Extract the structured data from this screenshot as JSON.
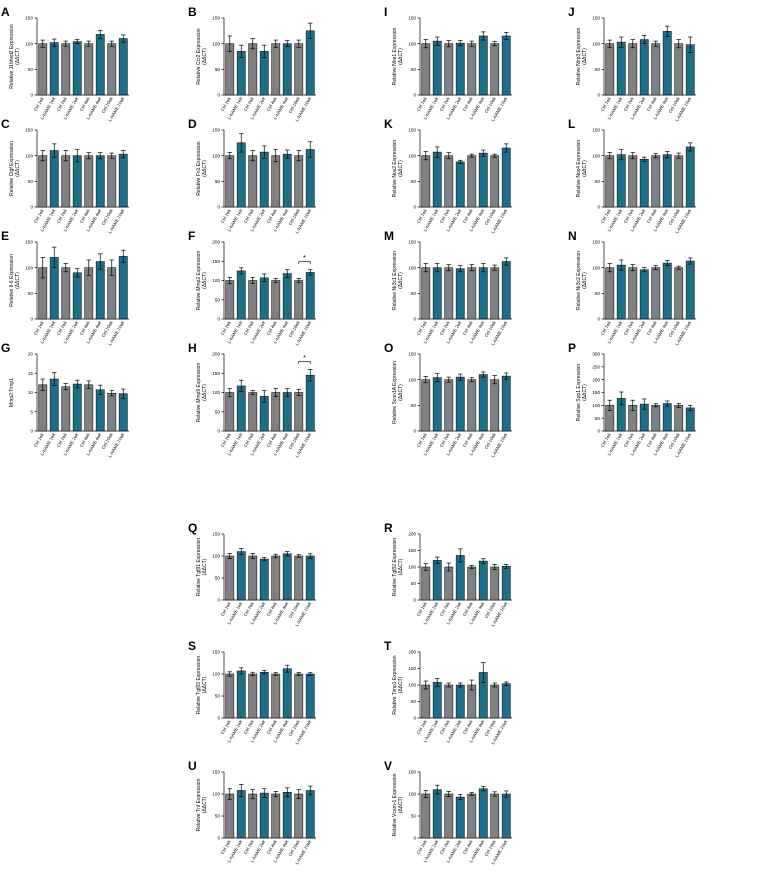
{
  "colors": {
    "ctrl": "#808080",
    "lname": "#1b6f8a",
    "axis": "#000000"
  },
  "categories": [
    "Ctrl 1wk",
    "L-NAME 1wk",
    "Ctrl 2wk",
    "L-NAME 2wk",
    "Ctrl 4wk",
    "L-NAME 4wk",
    "Ctrl 10wk",
    "L-NAME 10wk"
  ],
  "chart_data": [
    {
      "panel": "A",
      "type": "bar",
      "ylabel": "Relative 11bhsd2 Expression",
      "ylabel2": "(ΔΔCT)",
      "ylim": [
        0,
        150
      ],
      "yticks": [
        0,
        50,
        100,
        150
      ],
      "values": [
        100,
        102,
        100,
        104,
        100,
        118,
        100,
        110
      ],
      "errors": [
        7,
        7,
        5,
        4,
        5,
        8,
        5,
        7
      ],
      "sig": []
    },
    {
      "panel": "B",
      "type": "bar",
      "ylabel": "Relative Ccr2 Expression",
      "ylabel2": "(ΔΔCT)",
      "ylim": [
        0,
        150
      ],
      "yticks": [
        0,
        50,
        100,
        150
      ],
      "values": [
        100,
        85,
        100,
        85,
        100,
        100,
        100,
        125
      ],
      "errors": [
        15,
        12,
        10,
        12,
        7,
        6,
        7,
        15
      ],
      "sig": []
    },
    {
      "panel": "C",
      "type": "bar",
      "ylabel": "Relative Ctgf Expression",
      "ylabel2": "(ΔΔCT)",
      "ylim": [
        0,
        150
      ],
      "yticks": [
        0,
        50,
        100,
        150
      ],
      "values": [
        100,
        110,
        100,
        100,
        100,
        100,
        100,
        103
      ],
      "errors": [
        10,
        13,
        10,
        12,
        6,
        6,
        5,
        7
      ],
      "sig": []
    },
    {
      "panel": "D",
      "type": "bar",
      "ylabel": "Relative Fn1 Expression",
      "ylabel2": "(ΔΔCT)",
      "ylim": [
        0,
        150
      ],
      "yticks": [
        0,
        50,
        100,
        150
      ],
      "values": [
        100,
        125,
        100,
        107,
        100,
        103,
        100,
        112
      ],
      "errors": [
        6,
        18,
        10,
        12,
        12,
        8,
        10,
        15
      ],
      "sig": []
    },
    {
      "panel": "E",
      "type": "bar",
      "ylabel": "Relative Il-6 Expression",
      "ylabel2": "(ΔΔCT)",
      "ylim": [
        0,
        150
      ],
      "yticks": [
        0,
        50,
        100,
        150
      ],
      "values": [
        100,
        120,
        100,
        90,
        100,
        112,
        100,
        122
      ],
      "errors": [
        20,
        20,
        8,
        8,
        15,
        15,
        15,
        12
      ],
      "sig": []
    },
    {
      "panel": "F",
      "type": "bar",
      "ylabel": "Relative Mmp2 Expression",
      "ylabel2": "(ΔΔCT)",
      "ylim": [
        0,
        200
      ],
      "yticks": [
        0,
        50,
        100,
        150,
        200
      ],
      "values": [
        100,
        125,
        100,
        107,
        100,
        118,
        100,
        121
      ],
      "errors": [
        8,
        8,
        8,
        10,
        5,
        10,
        5,
        7
      ],
      "sig": [
        {
          "from": 6,
          "to": 7,
          "label": "*"
        }
      ]
    },
    {
      "panel": "G",
      "type": "bar",
      "ylabel": "Mmp2:Timp1",
      "ylabel2": "",
      "ylim": [
        0,
        20
      ],
      "yticks": [
        0,
        5,
        10,
        15,
        20
      ],
      "values": [
        12,
        13.5,
        11.5,
        12.2,
        12,
        10.7,
        9.8,
        9.7
      ],
      "errors": [
        1.5,
        1.7,
        0.8,
        1,
        1,
        1.2,
        0.7,
        1.2
      ],
      "sig": []
    },
    {
      "panel": "H",
      "type": "bar",
      "ylabel": "Relative Mmp9 Expression",
      "ylabel2": "(ΔΔCT)",
      "ylim": [
        0,
        200
      ],
      "yticks": [
        0,
        50,
        100,
        150,
        200
      ],
      "values": [
        100,
        117,
        100,
        90,
        100,
        100,
        100,
        145
      ],
      "errors": [
        10,
        15,
        5,
        15,
        10,
        10,
        8,
        15
      ],
      "sig": [
        {
          "from": 6,
          "to": 7,
          "label": "*"
        }
      ]
    },
    {
      "panel": "I",
      "type": "bar",
      "ylabel": "Relative Nhe1 Expression",
      "ylabel2": "(ΔΔCT)",
      "ylim": [
        0,
        150
      ],
      "yticks": [
        0,
        50,
        100,
        150
      ],
      "values": [
        100,
        105,
        100,
        101,
        100,
        115,
        100,
        115
      ],
      "errors": [
        8,
        8,
        6,
        5,
        5,
        8,
        4,
        7
      ],
      "sig": []
    },
    {
      "panel": "J",
      "type": "bar",
      "ylabel": "Relative Nlrp3 Expression",
      "ylabel2": "(ΔΔCT)",
      "ylim": [
        0,
        150
      ],
      "yticks": [
        0,
        50,
        100,
        150
      ],
      "values": [
        100,
        103,
        100,
        108,
        100,
        124,
        100,
        98
      ],
      "errors": [
        7,
        10,
        8,
        8,
        5,
        10,
        8,
        15
      ],
      "sig": []
    },
    {
      "panel": "K",
      "type": "bar",
      "ylabel": "Relative Nox2 Expression",
      "ylabel2": "(ΔΔCT)",
      "ylim": [
        0,
        150
      ],
      "yticks": [
        0,
        50,
        100,
        150
      ],
      "values": [
        100,
        107,
        100,
        88,
        100,
        105,
        100,
        115
      ],
      "errors": [
        8,
        10,
        6,
        3,
        3,
        6,
        3,
        8
      ],
      "sig": []
    },
    {
      "panel": "L",
      "type": "bar",
      "ylabel": "Relative Nox4 Expression",
      "ylabel2": "(ΔΔCT)",
      "ylim": [
        0,
        150
      ],
      "yticks": [
        0,
        50,
        100,
        150
      ],
      "values": [
        100,
        102,
        100,
        93,
        100,
        102,
        100,
        117
      ],
      "errors": [
        6,
        10,
        6,
        4,
        4,
        6,
        5,
        8
      ],
      "sig": []
    },
    {
      "panel": "M",
      "type": "bar",
      "ylabel": "Relative Nr3c1 Expression",
      "ylabel2": "(ΔΔCT)",
      "ylim": [
        0,
        150
      ],
      "yticks": [
        0,
        50,
        100,
        150
      ],
      "values": [
        100,
        100,
        100,
        98,
        100,
        100,
        100,
        112
      ],
      "errors": [
        8,
        8,
        6,
        6,
        6,
        8,
        5,
        7
      ],
      "sig": []
    },
    {
      "panel": "N",
      "type": "bar",
      "ylabel": "Relative Nr3c2 Expression",
      "ylabel2": "(ΔΔCT)",
      "ylim": [
        0,
        150
      ],
      "yticks": [
        0,
        50,
        100,
        150
      ],
      "values": [
        100,
        105,
        100,
        96,
        100,
        109,
        100,
        113
      ],
      "errors": [
        8,
        10,
        6,
        4,
        4,
        5,
        3,
        6
      ],
      "sig": []
    },
    {
      "panel": "O",
      "type": "bar",
      "ylabel": "Relative Scnn1A Expression",
      "ylabel2": "(ΔΔCT)",
      "ylim": [
        0,
        150
      ],
      "yticks": [
        0,
        50,
        100,
        150
      ],
      "values": [
        100,
        104,
        100,
        105,
        100,
        110,
        100,
        107
      ],
      "errors": [
        6,
        8,
        5,
        6,
        4,
        5,
        8,
        6
      ],
      "sig": []
    },
    {
      "panel": "P",
      "type": "bar",
      "ylabel": "Relative Spp1 Expression",
      "ylabel2": "(ΔΔCT)",
      "ylim": [
        0,
        300
      ],
      "yticks": [
        0,
        50,
        100,
        150,
        200,
        250,
        300
      ],
      "values": [
        100,
        127,
        100,
        105,
        100,
        107,
        100,
        90
      ],
      "errors": [
        20,
        25,
        20,
        20,
        6,
        10,
        8,
        10
      ],
      "sig": []
    },
    {
      "panel": "Q",
      "type": "bar",
      "ylabel": "Relative Tgfβ1 Expression",
      "ylabel2": "(ΔΔCT)",
      "ylim": [
        0,
        150
      ],
      "yticks": [
        0,
        50,
        100,
        150
      ],
      "values": [
        100,
        110,
        100,
        93,
        100,
        105,
        100,
        100
      ],
      "errors": [
        6,
        7,
        6,
        4,
        4,
        5,
        3,
        5
      ],
      "sig": []
    },
    {
      "panel": "R",
      "type": "bar",
      "ylabel": "Relative Tgfβ2 Expression",
      "ylabel2": "(ΔΔCT)",
      "ylim": [
        0,
        200
      ],
      "yticks": [
        0,
        50,
        100,
        150,
        200
      ],
      "values": [
        100,
        120,
        100,
        135,
        100,
        118,
        100,
        102
      ],
      "errors": [
        10,
        10,
        12,
        20,
        5,
        7,
        8,
        6
      ],
      "sig": []
    },
    {
      "panel": "S",
      "type": "bar",
      "ylabel": "Relative Tgfβ3 Expression",
      "ylabel2": "(ΔΔCT)",
      "ylim": [
        0,
        150
      ],
      "yticks": [
        0,
        50,
        100,
        150
      ],
      "values": [
        100,
        107,
        100,
        104,
        100,
        112,
        100,
        100
      ],
      "errors": [
        5,
        7,
        4,
        4,
        3,
        8,
        3,
        3
      ],
      "sig": []
    },
    {
      "panel": "T",
      "type": "bar",
      "ylabel": "Relative Timp1 Expression",
      "ylabel2": "(ΔΔCT)",
      "ylim": [
        0,
        200
      ],
      "yticks": [
        0,
        50,
        100,
        150,
        200
      ],
      "values": [
        100,
        108,
        100,
        100,
        100,
        138,
        100,
        104
      ],
      "errors": [
        12,
        12,
        6,
        6,
        15,
        30,
        6,
        5
      ],
      "sig": []
    },
    {
      "panel": "U",
      "type": "bar",
      "ylabel": "Relative Tnf Expression",
      "ylabel2": "(ΔΔCT)",
      "ylim": [
        0,
        150
      ],
      "yticks": [
        0,
        50,
        100,
        150
      ],
      "values": [
        100,
        108,
        100,
        102,
        100,
        104,
        100,
        108
      ],
      "errors": [
        12,
        14,
        10,
        10,
        6,
        10,
        10,
        10
      ],
      "sig": []
    },
    {
      "panel": "V",
      "type": "bar",
      "ylabel": "Relative Vcam-1 Expression",
      "ylabel2": "(ΔΔCT)",
      "ylim": [
        0,
        150
      ],
      "yticks": [
        0,
        50,
        100,
        150
      ],
      "values": [
        100,
        110,
        100,
        93,
        100,
        112,
        100,
        100
      ],
      "errors": [
        8,
        10,
        6,
        6,
        3,
        5,
        5,
        7
      ],
      "sig": []
    }
  ]
}
